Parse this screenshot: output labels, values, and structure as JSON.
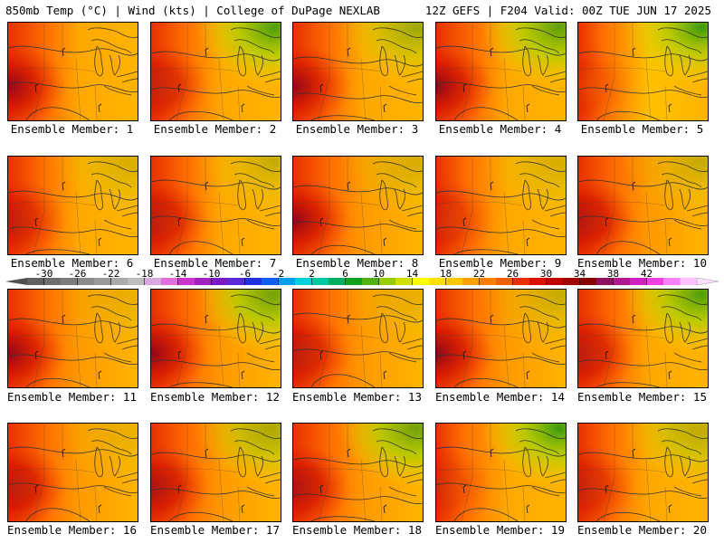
{
  "header": {
    "left": "850mb Temp (°C) | Wind (kts) | College of DuPage NEXLAB",
    "right": "12Z GEFS | F204 Valid: 00Z TUE JUN 17 2025"
  },
  "member_label_prefix": "Ensemble Member: ",
  "members": [
    1,
    2,
    3,
    4,
    5,
    6,
    7,
    8,
    9,
    10,
    11,
    12,
    13,
    14,
    15,
    16,
    17,
    18,
    19,
    20
  ],
  "colorbar": {
    "tick_labels": [
      "-30",
      "-26",
      "-22",
      "-18",
      "-14",
      "-10",
      "-6",
      "-2",
      "2",
      "6",
      "10",
      "14",
      "18",
      "22",
      "26",
      "30",
      "34",
      "38",
      "42"
    ],
    "colors": [
      "#606060",
      "#6e6e6e",
      "#7c7c7c",
      "#8a8a8a",
      "#9a9a9a",
      "#aaaaaa",
      "#bdbdbd",
      "#d9a8e0",
      "#e070e0",
      "#cc33cc",
      "#a020c0",
      "#7a18c8",
      "#5a2ad8",
      "#2030e0",
      "#1060f0",
      "#00a0f0",
      "#00d0e0",
      "#00c8a0",
      "#00b060",
      "#10a020",
      "#50b010",
      "#98cc00",
      "#d0e000",
      "#ffff00",
      "#ffe000",
      "#ffc800",
      "#ffa000",
      "#ff8000",
      "#f06000",
      "#e83000",
      "#d81000",
      "#c00000",
      "#a00000",
      "#880000",
      "#901060",
      "#b01890",
      "#d020c0",
      "#f040e0",
      "#ff80ff",
      "#ffc0ff"
    ]
  }
}
